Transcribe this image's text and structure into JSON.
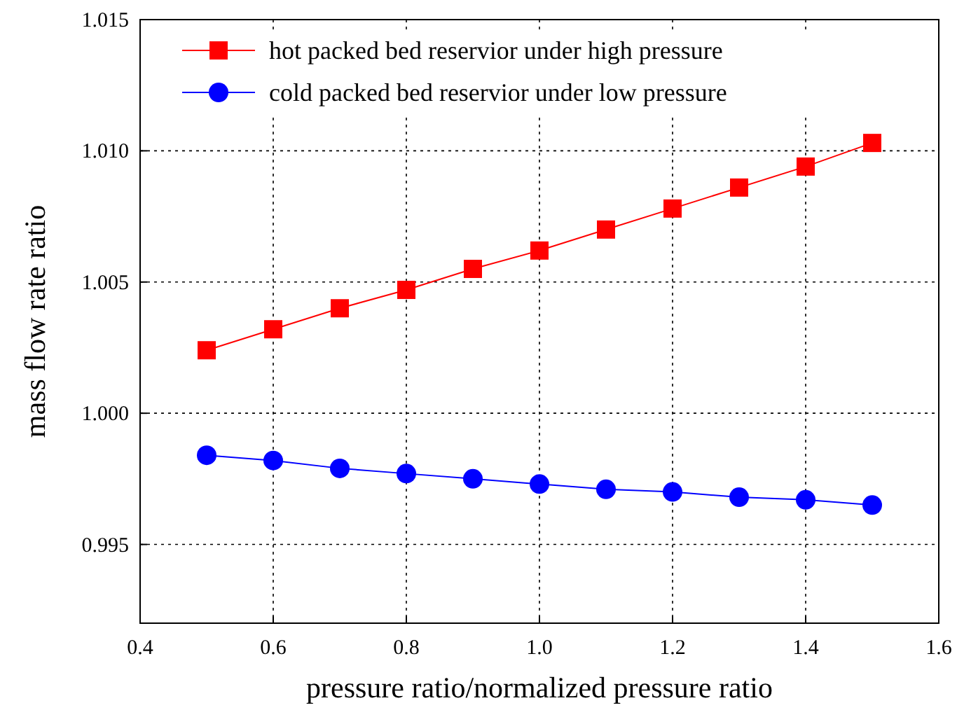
{
  "chart_data": {
    "type": "line",
    "xlabel": "pressure ratio/normalized pressure ratio",
    "ylabel": "mass flow rate ratio",
    "x": [
      0.5,
      0.6,
      0.7,
      0.8,
      0.9,
      1.0,
      1.1,
      1.2,
      1.3,
      1.4,
      1.5
    ],
    "series": [
      {
        "name": "hot packed bed reservior under high pressure",
        "color": "#ff0000",
        "marker": "square",
        "values": [
          1.0024,
          1.0032,
          1.004,
          1.0047,
          1.0055,
          1.0062,
          1.007,
          1.0078,
          1.0086,
          1.0094,
          1.0103
        ]
      },
      {
        "name": "cold packed bed reservior under low pressure",
        "color": "#0000ff",
        "marker": "circle",
        "values": [
          0.9984,
          0.9982,
          0.9979,
          0.9977,
          0.9975,
          0.9973,
          0.9971,
          0.997,
          0.9968,
          0.9967,
          0.9965
        ]
      }
    ],
    "xlim": [
      0.4,
      1.6
    ],
    "xticks": [
      {
        "value": 0.4,
        "label": "0.4"
      },
      {
        "value": 0.6,
        "label": "0.6"
      },
      {
        "value": 0.8,
        "label": "0.8"
      },
      {
        "value": 1.0,
        "label": "1.0"
      },
      {
        "value": 1.2,
        "label": "1.2"
      },
      {
        "value": 1.4,
        "label": "1.4"
      },
      {
        "value": 1.6,
        "label": "1.6"
      }
    ],
    "ylim": [
      0.992,
      1.015
    ],
    "yticks": [
      {
        "value": 0.995,
        "label": "0.995"
      },
      {
        "value": 1.0,
        "label": "1.000"
      },
      {
        "value": 1.005,
        "label": "1.005"
      },
      {
        "value": 1.01,
        "label": "1.010"
      },
      {
        "value": 1.015,
        "label": "1.015"
      }
    ],
    "grid": true,
    "legend": "top left",
    "line_style": "solid"
  }
}
